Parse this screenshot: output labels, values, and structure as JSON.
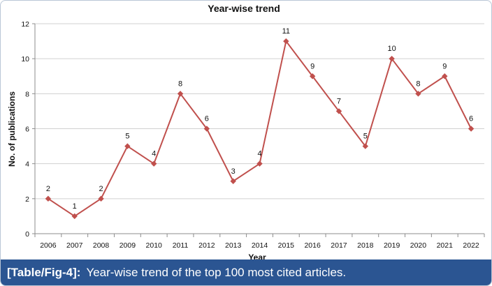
{
  "chart_data": {
    "type": "line",
    "title": "Year-wise trend",
    "xlabel": "Year",
    "ylabel": "No. of publications",
    "categories": [
      "2006",
      "2007",
      "2008",
      "2009",
      "2010",
      "2011",
      "2012",
      "2013",
      "2014",
      "2015",
      "2016",
      "2017",
      "2018",
      "2019",
      "2020",
      "2021",
      "2022"
    ],
    "series": [
      {
        "name": "No. of publications",
        "values": [
          2,
          1,
          2,
          5,
          4,
          8,
          6,
          3,
          4,
          11,
          9,
          7,
          5,
          10,
          8,
          9,
          6
        ],
        "color": "#c0504d"
      }
    ],
    "ylim": [
      0,
      12
    ],
    "yticks": [
      0,
      2,
      4,
      6,
      8,
      10,
      12
    ],
    "grid": true,
    "data_labels": true
  },
  "caption": {
    "label": "[Table/Fig-4]:",
    "text": "Year-wise trend of the top 100 most cited articles."
  },
  "colors": {
    "caption_bg": "#2b5592",
    "line": "#c0504d"
  }
}
